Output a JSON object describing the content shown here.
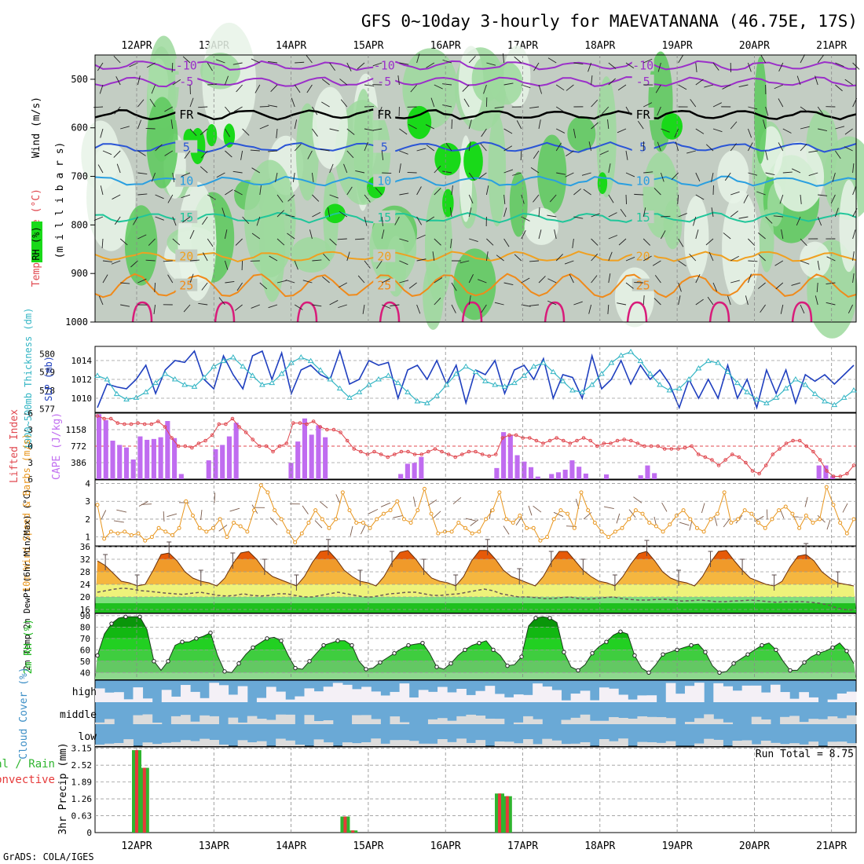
{
  "title": "GFS 0~10day 3-hourly for MAEVATANANA (46.75E, 17S)",
  "credit": "GrADS: COLA/IGES",
  "colors": {
    "pressure_bg": "#c3cdc3",
    "rh_light": "#e8f3e8",
    "rh_mid": "#9ed99e",
    "rh_high": "#5cc95c",
    "rh_top": "#19d919",
    "slp": "#1f3fbf",
    "thickness": "#33b5c4",
    "lifted_index": "#e0484f",
    "cape": "#c06cf0",
    "wind_speed": "#e8961e",
    "barbs": "#7a5a4a",
    "temp_band": "#ec7a17",
    "cloud": "#6aa9d6",
    "cloud_clear": "#f4f0f6",
    "rain_total": "#2fb52f",
    "rain_conv": "#e63a3a"
  },
  "chart_data": [
    {
      "type": "heatmap",
      "panel": "pressure-time cross section",
      "ylabels": [
        "Wind (m/s)",
        "Temperature (°C)",
        "RH (%)",
        "(m i l l i b a r s)"
      ],
      "y_ticks": [
        500,
        600,
        700,
        800,
        900,
        1000
      ],
      "ylim": [
        1000,
        450
      ],
      "x_ticks": [
        "12APR",
        "13APR",
        "14APR",
        "15APR",
        "16APR",
        "17APR",
        "18APR",
        "19APR",
        "20APR",
        "21APR"
      ],
      "isotherms": [
        {
          "label": "-10",
          "level": 472,
          "color": "#9b2fc9"
        },
        {
          "label": "-5",
          "level": 505,
          "color": "#9b2fc9"
        },
        {
          "label": "FR",
          "level": 573,
          "color": "#000000"
        },
        {
          "label": "5",
          "level": 640,
          "color": "#2a55d6"
        },
        {
          "label": "10",
          "level": 710,
          "color": "#2a9fe0"
        },
        {
          "label": "15",
          "level": 785,
          "color": "#20c69a"
        },
        {
          "label": "20",
          "level": 865,
          "color": "#f0a020"
        },
        {
          "label": "25",
          "level": 925,
          "color": "#f08a1a"
        }
      ]
    },
    {
      "type": "line",
      "panel": "slp and thickness",
      "y_left_label": "1000~500mb Thickness (dm)",
      "y_right_label": "SLP (mb)",
      "left_ticks": [
        577,
        578,
        579,
        580
      ],
      "right_ticks": [
        1010,
        1012,
        1014
      ],
      "series": [
        {
          "name": "SLP (mb)",
          "axis": "right",
          "values": [
            1009.0,
            1011.5,
            1011.2,
            1011.0,
            1012.0,
            1013.5,
            1010.5,
            1013.0,
            1014.0,
            1013.8,
            1015.0,
            1012.0,
            1011.0,
            1014.5,
            1012.5,
            1011.0,
            1014.5,
            1015.0,
            1012.0,
            1014.8,
            1010.5,
            1013.0,
            1013.5,
            1012.5,
            1012.0,
            1015.0,
            1011.5,
            1012.0,
            1014.0,
            1013.5,
            1013.8,
            1010.0,
            1013.0,
            1013.5,
            1012.0,
            1014.0,
            1011.5,
            1013.5,
            1009.5,
            1013.0,
            1012.5,
            1014.0,
            1010.5,
            1013.0,
            1013.5,
            1012.0,
            1014.2,
            1010.0,
            1012.5,
            1012.2,
            1010.0,
            1014.5,
            1011.0,
            1012.0,
            1014.0,
            1011.5,
            1013.5,
            1012.0,
            1013.0,
            1011.5,
            1009.0,
            1012.0,
            1010.0,
            1012.0,
            1010.0,
            1013.5,
            1010.0,
            1012.0,
            1009.0,
            1013.0,
            1010.5,
            1013.0,
            1009.5,
            1012.5,
            1011.8,
            1012.5,
            1011.5,
            1012.5,
            1013.5
          ]
        },
        {
          "name": "Thickness (dm)",
          "axis": "left",
          "values": [
            578.8,
            578.6,
            577.8,
            577.5,
            577.6,
            577.9,
            578.4,
            578.9,
            578.6,
            578.3,
            578.2,
            578.7,
            579.3,
            579.6,
            579.8,
            579.3,
            578.8,
            578.3,
            578.4,
            578.9,
            579.5,
            579.8,
            579.6,
            579.1,
            578.6,
            578.1,
            577.6,
            577.9,
            578.3,
            578.6,
            578.8,
            578.4,
            577.9,
            577.4,
            577.3,
            577.7,
            578.3,
            578.9,
            579.3,
            579.0,
            578.5,
            578.3,
            578.2,
            578.4,
            578.8,
            579.3,
            579.5,
            579.0,
            578.5,
            578.0,
            577.9,
            578.3,
            578.9,
            579.5,
            579.9,
            580.1,
            579.6,
            578.9,
            578.3,
            578.0,
            578.1,
            578.6,
            579.2,
            579.6,
            579.5,
            579.0,
            578.4,
            577.9,
            577.5,
            577.3,
            577.6,
            578.1,
            578.6,
            578.3,
            577.8,
            577.4,
            577.2,
            577.6,
            578.0
          ]
        }
      ]
    },
    {
      "type": "bar",
      "panel": "lifted index and cape",
      "y_left_label": "Lifted Index",
      "y_right_label": "CAPE (J/kg)",
      "left_ticks": [
        -6,
        -3,
        0,
        3,
        6
      ],
      "right_ticks": [
        386,
        772,
        1158
      ],
      "series": [
        {
          "name": "CAPE (J/kg)",
          "values": [
            1520,
            1380,
            900,
            800,
            740,
            460,
            1000,
            920,
            940,
            980,
            1360,
            960,
            120,
            0,
            0,
            0,
            440,
            700,
            800,
            1000,
            1320,
            0,
            0,
            0,
            0,
            0,
            0,
            0,
            380,
            880,
            1420,
            1040,
            1260,
            980,
            0,
            0,
            0,
            0,
            0,
            0,
            0,
            0,
            0,
            0,
            120,
            360,
            380,
            520,
            0,
            0,
            0,
            0,
            0,
            0,
            0,
            0,
            0,
            0,
            260,
            1100,
            1020,
            560,
            410,
            280,
            60,
            0,
            120,
            160,
            220,
            440,
            290,
            130,
            0,
            0,
            110,
            0,
            0,
            0,
            0,
            90,
            320,
            140,
            0,
            0,
            0,
            0,
            0,
            0,
            0,
            0,
            0,
            0,
            0,
            0,
            0,
            0,
            0,
            0,
            0,
            0,
            0,
            0,
            0,
            0,
            0,
            320,
            320,
            80,
            0,
            0,
            0
          ]
        },
        {
          "name": "Lifted Index",
          "values": [
            -5.5,
            -5.0,
            -5.0,
            -4.2,
            -4.0,
            -4.0,
            -4.2,
            -4.0,
            -4.0,
            -4.5,
            -3.5,
            -1.5,
            0,
            0,
            0.3,
            -0.5,
            -1.0,
            -2.0,
            -4.0,
            -4.0,
            -5.0,
            -3.5,
            -2.5,
            -1.2,
            0,
            0,
            1.0,
            0,
            -0.5,
            -4.2,
            -4.2,
            -4.0,
            -4.5,
            -3.5,
            -3.0,
            -3.0,
            -2.5,
            -1.0,
            0.5,
            1.0,
            1.5,
            1.0,
            1.5,
            2.0,
            1.5,
            1.0,
            1.0,
            1.5,
            1.5,
            1.0,
            0.5,
            1.0,
            1.5,
            2.0,
            1.5,
            1.0,
            1.0,
            1.5,
            1.8,
            1.5,
            -1.5,
            -2.0,
            -2.0,
            -1.5,
            -1.5,
            -1.0,
            -0.5,
            -1.0,
            -1.5,
            -1.0,
            -0.5,
            -1.0,
            -1.5,
            -1.0,
            0,
            -0.5,
            -0.5,
            -1.0,
            -1.2,
            -1.0,
            -0.5,
            0,
            0,
            0,
            0.5,
            0.5,
            0.5,
            0.3,
            0,
            1.5,
            2.0,
            2.5,
            3.5,
            2.5,
            1.5,
            2.0,
            3.0,
            4.5,
            5.0,
            3.5,
            1.5,
            0.5,
            -0.5,
            -1.0,
            -1.0,
            0,
            1.0,
            2.5,
            4.5,
            5.5,
            5.5,
            5.0,
            3.5
          ]
        }
      ]
    },
    {
      "type": "line",
      "panel": "10m wind",
      "ylabel": "10m Wind Speed & Barbs (m/s)",
      "y_ticks": [
        1,
        2,
        3,
        4
      ],
      "ylim": [
        0.5,
        4.2
      ],
      "series": [
        {
          "name": "Speed",
          "values": [
            2.8,
            0.9,
            1.3,
            1.2,
            1.3,
            1.1,
            1.2,
            0.8,
            1.0,
            1.5,
            1.3,
            1.1,
            1.5,
            3.0,
            2.2,
            1.5,
            1.3,
            1.5,
            2.0,
            1.0,
            1.8,
            1.6,
            1.3,
            2.5,
            3.9,
            3.5,
            2.5,
            2.0,
            1.3,
            0.7,
            1.2,
            1.8,
            2.5,
            2.0,
            1.5,
            2.0,
            3.5,
            2.5,
            1.8,
            1.8,
            1.5,
            2.0,
            2.3,
            2.5,
            3.0,
            2.0,
            1.8,
            2.5,
            3.7,
            2.3,
            1.2,
            1.3,
            1.3,
            1.8,
            1.5,
            1.2,
            1.3,
            2.0,
            2.5,
            3.5,
            2.0,
            1.8,
            2.2,
            1.5,
            1.5,
            0.8,
            1.0,
            2.0,
            2.5,
            2.3,
            1.5,
            3.5,
            2.5,
            1.8,
            1.3,
            1.0,
            1.3,
            1.5,
            2.0,
            2.5,
            2.3,
            1.8,
            1.6,
            1.3,
            1.7,
            2.2,
            2.5,
            2.0,
            1.5,
            1.3,
            2.0,
            2.3,
            3.5,
            1.8,
            2.0,
            2.5,
            2.3,
            1.8,
            1.5,
            2.0,
            2.5,
            2.7,
            2.3,
            1.5,
            2.2,
            1.8,
            2.0,
            3.8,
            2.8,
            1.8,
            1.2,
            2.0
          ]
        }
      ]
    },
    {
      "type": "area",
      "panel": "2m temperature",
      "ylabel": "2m Temp 2m DewPt (6hr Min/Max) (°C)",
      "y_ticks": [
        16,
        20,
        24,
        28,
        32,
        36
      ],
      "ylim": [
        15,
        36
      ],
      "series": [
        {
          "name": "2m Temp",
          "values": [
            31.5,
            30.0,
            27.5,
            25.0,
            24.5,
            23.5,
            24.0,
            28.5,
            33.5,
            34.0,
            31.5,
            28.0,
            26.0,
            25.0,
            24.5,
            23.5,
            26.0,
            30.5,
            34.0,
            34.5,
            32.0,
            28.5,
            26.5,
            25.5,
            24.5,
            23.5,
            26.5,
            31.0,
            34.5,
            34.8,
            32.0,
            28.5,
            26.5,
            25.0,
            24.5,
            23.5,
            26.5,
            31.0,
            34.2,
            34.8,
            32.0,
            28.5,
            26.0,
            25.0,
            24.5,
            23.5,
            26.5,
            31.5,
            34.8,
            34.8,
            32.0,
            28.5,
            26.5,
            25.5,
            24.5,
            23.5,
            26.5,
            31.0,
            34.5,
            34.5,
            31.5,
            28.5,
            26.5,
            25.0,
            24.5,
            23.5,
            26.5,
            30.5,
            33.8,
            34.5,
            31.5,
            28.0,
            26.0,
            25.0,
            24.5,
            23.5,
            26.5,
            31.0,
            34.5,
            34.8,
            31.5,
            28.5,
            26.0,
            25.0,
            24.0,
            23.5,
            25.0,
            29.5,
            33.0,
            33.5,
            31.5,
            28.0,
            26.0,
            24.5,
            24.0,
            23.5
          ]
        },
        {
          "name": "2m DewPt",
          "values": [
            21.5,
            22.0,
            22.5,
            22.8,
            22.5,
            22.0,
            21.8,
            21.5,
            21.2,
            21.0,
            20.8,
            21.2,
            21.5,
            21.0,
            20.5,
            20.3,
            20.5,
            21.0,
            20.5,
            20.3,
            20.5,
            21.0,
            21.0,
            20.5,
            20.0,
            20.0,
            20.5,
            21.0,
            21.5,
            21.0,
            20.5,
            20.0,
            20.0,
            20.5,
            21.0,
            21.2,
            21.5,
            21.5,
            21.0,
            20.5,
            20.5,
            20.8,
            21.0,
            21.5,
            22.0,
            22.5,
            22.0,
            21.0,
            20.5,
            20.0,
            20.0,
            19.8,
            19.5,
            19.5,
            19.8,
            20.0,
            19.5,
            19.3,
            19.5,
            19.8,
            20.0,
            19.5,
            19.2,
            19.0,
            19.0,
            19.2,
            19.3,
            19.0,
            18.7,
            18.8,
            19.0,
            18.8,
            18.5,
            18.5,
            18.7,
            18.8,
            19.0,
            18.8,
            18.5,
            18.3,
            18.5,
            18.5,
            18.5,
            18.3,
            18.0,
            17.5,
            16.5,
            16.0,
            15.8
          ]
        }
      ]
    },
    {
      "type": "area",
      "panel": "2m rh",
      "ylabel": "2m RH (%)",
      "y_ticks": [
        40,
        50,
        60,
        70,
        80,
        90
      ],
      "ylim": [
        34,
        92
      ],
      "series": [
        {
          "name": "2m RH",
          "values": [
            55,
            74,
            83,
            88,
            89,
            89,
            89,
            78,
            50,
            42,
            50,
            64,
            67,
            67,
            70,
            72,
            75,
            55,
            41,
            40,
            48,
            56,
            62,
            66,
            70,
            71,
            68,
            55,
            44,
            43,
            50,
            57,
            64,
            66,
            68,
            68,
            64,
            50,
            43,
            44,
            49,
            53,
            57,
            61,
            64,
            65,
            66,
            57,
            45,
            43,
            48,
            55,
            60,
            64,
            66,
            68,
            60,
            55,
            46,
            47,
            54,
            81,
            88,
            89,
            88,
            84,
            58,
            45,
            42,
            47,
            57,
            63,
            67,
            73,
            76,
            74,
            55,
            44,
            40,
            47,
            56,
            58,
            60,
            62,
            64,
            65,
            58,
            46,
            40,
            41,
            48,
            52,
            56,
            60,
            64,
            66,
            60,
            50,
            42,
            42,
            49,
            54,
            57,
            59,
            62,
            66,
            59,
            48
          ]
        }
      ]
    },
    {
      "type": "bar",
      "panel": "cloud cover",
      "ylabel": "Cloud Cover (%)",
      "categories": [
        "high",
        "middle",
        "low"
      ]
    },
    {
      "type": "bar",
      "panel": "3hr precip",
      "ylabel": "3hr Precip (mm)",
      "side_label_total": "Total / Rain",
      "side_label_conv": "Convective",
      "y_ticks": [
        "0",
        "0.63",
        "1.26",
        "1.89",
        "2.52",
        "3.15"
      ],
      "ylim": [
        0,
        3.15
      ],
      "run_total_text": "Run Total =  8.75",
      "series": [
        {
          "name": "Total / Rain",
          "points": [
            [
              12.0,
              3.08
            ],
            [
              12.1,
              2.42
            ],
            [
              14.7,
              0.6
            ],
            [
              14.8,
              0.08
            ],
            [
              16.7,
              1.46
            ],
            [
              16.8,
              1.36
            ]
          ]
        },
        {
          "name": "Convective",
          "points": [
            [
              12.0,
              3.08
            ],
            [
              12.1,
              2.42
            ],
            [
              14.7,
              0.6
            ],
            [
              14.8,
              0.08
            ],
            [
              16.7,
              1.46
            ],
            [
              16.8,
              1.36
            ]
          ]
        }
      ]
    }
  ]
}
